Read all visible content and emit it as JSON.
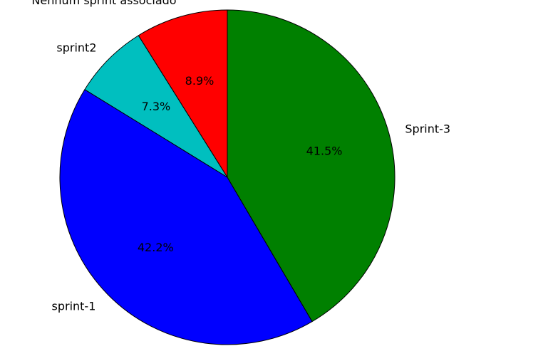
{
  "chart_data": {
    "type": "pie",
    "title": "",
    "start_angle_deg": 90,
    "direction": "counterclockwise",
    "slices": [
      {
        "label": "Nenhum sprint associado",
        "value": 8.9,
        "pct_label": "8.9%",
        "color": "#ff0000"
      },
      {
        "label": "sprint2",
        "value": 7.3,
        "pct_label": "7.3%",
        "color": "#00bfbf"
      },
      {
        "label": "sprint-1",
        "value": 42.2,
        "pct_label": "42.2%",
        "color": "#0000ff"
      },
      {
        "label": "Sprint-3",
        "value": 41.5,
        "pct_label": "41.5%",
        "color": "#008000"
      }
    ]
  }
}
